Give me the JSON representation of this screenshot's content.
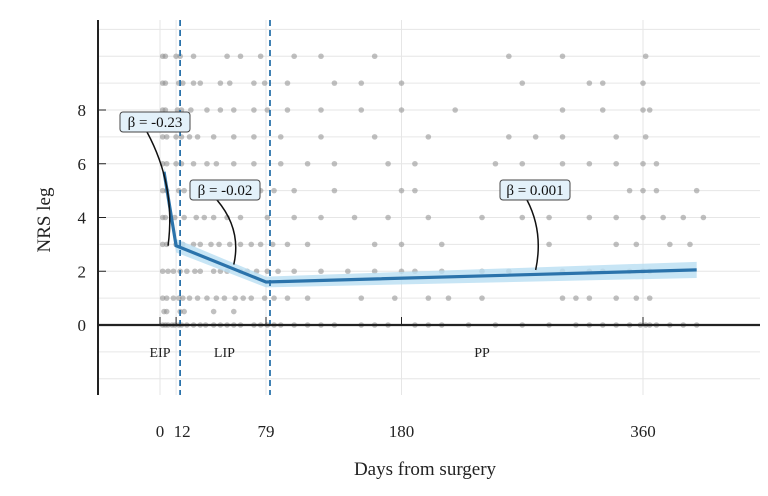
{
  "chart_data": {
    "type": "scatter",
    "xlabel": "Days from surgery",
    "ylabel": "NRS leg",
    "xticks": [
      0,
      12,
      79,
      180,
      360
    ],
    "yticks": [
      0,
      2,
      4,
      6,
      8
    ],
    "xlim": [
      -46,
      447
    ],
    "ylim": [
      -2.6,
      11.3
    ],
    "grid": true,
    "phase_boundaries": [
      12,
      79
    ],
    "phases": [
      {
        "label": "EIP",
        "x": 0
      },
      {
        "label": "LIP",
        "x": 48
      },
      {
        "label": "PP",
        "x": 240
      }
    ],
    "points": [
      {
        "y": 0,
        "days": [
          2,
          4,
          6,
          9,
          11,
          14,
          16,
          20,
          25,
          30,
          34,
          40,
          45,
          50,
          55,
          60,
          70,
          75,
          80,
          85,
          90,
          100,
          110,
          120,
          130,
          150,
          160,
          170,
          190,
          200,
          210,
          230,
          250,
          270,
          290,
          310,
          320,
          330,
          340,
          350,
          358,
          362,
          365,
          370,
          380,
          390,
          400
        ]
      },
      {
        "y": 0.5,
        "days": [
          3,
          5,
          15,
          18,
          40,
          55
        ]
      },
      {
        "y": 1,
        "days": [
          2,
          5,
          10,
          14,
          17,
          22,
          28,
          35,
          42,
          48,
          56,
          62,
          68,
          78,
          85,
          95,
          110,
          150,
          175,
          200,
          215,
          240,
          300,
          310,
          320,
          340,
          355,
          365
        ]
      },
      {
        "y": 2,
        "days": [
          2,
          6,
          10,
          15,
          20,
          26,
          30,
          40,
          45,
          50,
          60,
          65,
          72,
          80,
          88,
          100,
          120,
          140,
          160,
          180,
          190,
          210,
          240,
          260,
          300,
          320,
          330,
          350,
          360,
          365
        ]
      },
      {
        "y": 3,
        "days": [
          2,
          5,
          12,
          17,
          25,
          30,
          38,
          44,
          52,
          60,
          68,
          75,
          84,
          95,
          110,
          160,
          180,
          210,
          290,
          340,
          355,
          380,
          395
        ]
      },
      {
        "y": 4,
        "days": [
          2,
          4,
          11,
          18,
          27,
          33,
          40,
          50,
          60,
          80,
          100,
          120,
          145,
          170,
          200,
          240,
          270,
          290,
          320,
          340,
          360,
          375,
          390,
          405
        ]
      },
      {
        "y": 5,
        "days": [
          2,
          5,
          14,
          18,
          30,
          40,
          55,
          60,
          75,
          85,
          100,
          130,
          180,
          190,
          260,
          280,
          300,
          350,
          360,
          370,
          400
        ]
      },
      {
        "y": 6,
        "days": [
          2,
          5,
          12,
          16,
          25,
          35,
          42,
          55,
          70,
          90,
          110,
          130,
          170,
          190,
          250,
          270,
          300,
          320,
          340,
          360,
          370
        ]
      },
      {
        "y": 7,
        "days": [
          2,
          5,
          12,
          16,
          22,
          28,
          40,
          55,
          70,
          90,
          120,
          160,
          200,
          260,
          280,
          300,
          340,
          362
        ]
      },
      {
        "y": 8,
        "days": [
          2,
          4,
          13,
          16,
          23,
          35,
          45,
          55,
          70,
          80,
          95,
          120,
          150,
          180,
          220,
          300,
          330,
          360,
          365
        ]
      },
      {
        "y": 9,
        "days": [
          2,
          4,
          14,
          17,
          25,
          30,
          45,
          52,
          70,
          78,
          95,
          130,
          150,
          180,
          270,
          320,
          330,
          360
        ]
      },
      {
        "y": 10,
        "days": [
          2,
          4,
          12,
          15,
          25,
          50,
          60,
          75,
          100,
          120,
          160,
          260,
          300,
          362
        ]
      }
    ],
    "fit": {
      "x": [
        3,
        12,
        79,
        400
      ],
      "y": [
        5.7,
        2.95,
        1.6,
        2.05
      ],
      "ci_halfwidth": [
        0.2,
        0.25,
        0.2,
        0.3
      ],
      "color": "#2b73ab",
      "band_color": "#b9dff2"
    },
    "annotations": [
      {
        "label": "β = -0.23",
        "x": 6,
        "y": 2.8
      },
      {
        "label": "β = -0.02",
        "x": 55,
        "y": 2.1
      },
      {
        "label": "β = 0.001",
        "x": 280,
        "y": 1.9
      }
    ],
    "point_color": "#8c8c8c"
  }
}
